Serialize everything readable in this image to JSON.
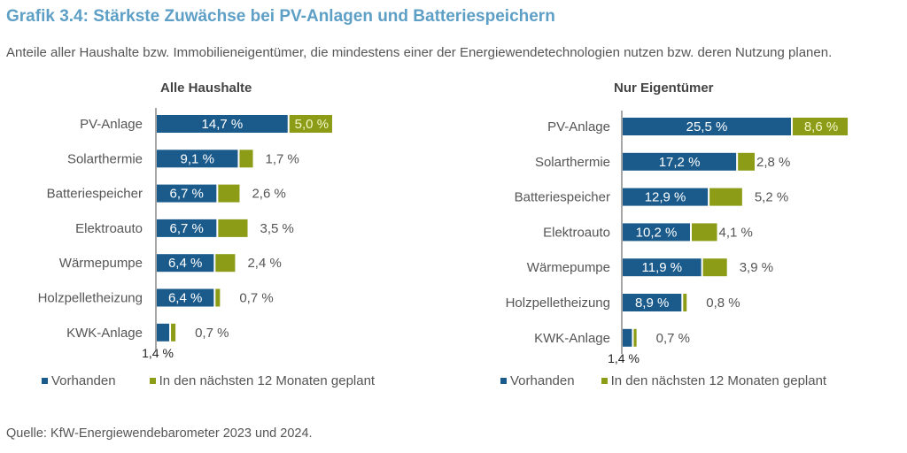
{
  "title": "Grafik 3.4: Stärkste Zuwächse bei PV-Anlagen und Batteriespeichern",
  "subtitle": "Anteile aller Haushalte bzw. Immobilieneigentümer, die mindestens einer der Energiewendetechnologien nutzen bzw. deren Nutzung planen.",
  "source": "Quelle: KfW-Energiewendebarometer 2023 und 2024.",
  "colors": {
    "title": "#5e9fc6",
    "vorhanden": "#1b5b8c",
    "geplant": "#8c9c17"
  },
  "chart_data": [
    {
      "type": "bar",
      "orientation": "horizontal",
      "stacked": true,
      "title": "Alle Haushalte",
      "categories": [
        "PV-Anlage",
        "Solarthermie",
        "Batteriespeicher",
        "Elektroauto",
        "Wärmepumpe",
        "Holzpelletheizung",
        "KWK-Anlage"
      ],
      "series": [
        {
          "name": "Vorhanden",
          "values": [
            14.7,
            9.1,
            6.7,
            6.7,
            6.4,
            6.4,
            1.4
          ],
          "labels": [
            "14,7 %",
            "9,1 %",
            "6,7 %",
            "6,7 %",
            "6,4 %",
            "6,4 %",
            "1,4 %"
          ]
        },
        {
          "name": "In den nächsten 12 Monaten geplant",
          "values": [
            5.0,
            1.7,
            2.6,
            3.5,
            2.4,
            0.7,
            0.7
          ],
          "labels": [
            "5,0 %",
            "1,7 %",
            "2,6 %",
            "3,5 %",
            "2,4 %",
            "0,7 %",
            "0,7 %"
          ]
        }
      ],
      "xlabel": "",
      "ylabel": "",
      "unit": "%",
      "legend_position": "bottom"
    },
    {
      "type": "bar",
      "orientation": "horizontal",
      "stacked": true,
      "title": "Nur Eigentümer",
      "categories": [
        "PV-Anlage",
        "Solarthermie",
        "Batteriespeicher",
        "Elektroauto",
        "Wärmepumpe",
        "Holzpelletheizung",
        "KWK-Anlage"
      ],
      "series": [
        {
          "name": "Vorhanden",
          "values": [
            25.5,
            17.2,
            12.9,
            10.2,
            11.9,
            8.9,
            1.4
          ],
          "labels": [
            "25,5 %",
            "17,2 %",
            "12,9 %",
            "10,2 %",
            "11,9 %",
            "8,9 %",
            "1,4 %"
          ]
        },
        {
          "name": "In den nächsten 12 Monaten geplant",
          "values": [
            8.6,
            2.8,
            5.2,
            4.1,
            3.9,
            0.8,
            0.7
          ],
          "labels": [
            "8,6 %",
            "2,8 %",
            "5,2 %",
            "4,1 %",
            "3,9 %",
            "0,8 %",
            "0,7 %"
          ]
        }
      ],
      "xlabel": "",
      "ylabel": "",
      "unit": "%",
      "legend_position": "bottom"
    }
  ],
  "legend": {
    "vorhanden": "Vorhanden",
    "geplant": "In den nächsten 12 Monaten geplant"
  }
}
